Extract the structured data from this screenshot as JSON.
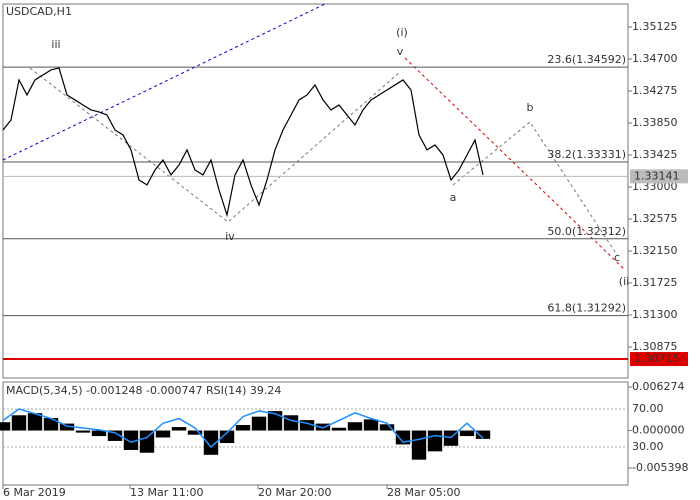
{
  "chart_data": [
    {
      "type": "line",
      "title": "USDCAD,H1",
      "color": "#000000",
      "x": [
        0,
        1,
        2,
        3,
        4,
        5,
        6,
        7,
        8,
        9,
        10,
        11,
        12,
        13,
        14,
        15,
        16,
        17,
        18,
        19,
        20,
        21,
        22,
        23,
        24,
        25,
        26,
        27,
        28,
        29,
        30,
        31,
        32,
        33,
        34,
        35,
        36,
        37,
        38,
        39,
        40,
        41,
        42,
        43,
        44,
        45,
        46,
        47,
        48,
        49,
        50,
        51,
        52,
        53,
        54,
        55,
        56,
        57,
        58,
        59,
        60
      ],
      "values": [
        1.33757,
        1.3389,
        1.34421,
        1.34222,
        1.34421,
        1.34488,
        1.34554,
        1.34581,
        1.34222,
        1.34156,
        1.34089,
        1.34023,
        1.33996,
        1.33956,
        1.33757,
        1.33691,
        1.33492,
        1.33093,
        1.33027,
        1.33226,
        1.33359,
        1.3316,
        1.33292,
        1.33492,
        1.33226,
        1.3316,
        1.33359,
        1.3296,
        1.32628,
        1.3316,
        1.33359,
        1.33027,
        1.32761,
        1.33093,
        1.33492,
        1.33757,
        1.33956,
        1.34156,
        1.34222,
        1.34355,
        1.34156,
        1.34023,
        1.34089,
        1.33956,
        1.33824,
        1.34023,
        1.34156,
        1.34222,
        1.34288,
        1.34355,
        1.34421,
        1.34288,
        1.33691,
        1.33492,
        1.33558,
        1.33425,
        1.33093,
        1.33226,
        1.33425,
        1.33624,
        1.3316
      ],
      "xlim": [
        0,
        78.125
      ],
      "xticks": [
        {
          "value": 0,
          "label": "6 Mar 2019"
        },
        {
          "value": 15.875,
          "label": "13 Mar 11:00"
        },
        {
          "value": 31.875,
          "label": "20 Mar 20:00"
        },
        {
          "value": 48,
          "label": "28 Mar 05:00"
        }
      ],
      "ylim": [
        1.30463,
        1.3543
      ],
      "yticks": [
        1.35125,
        {
          "value": 1.347,
          "label": "1.34700"
        },
        1.34275,
        {
          "value": 1.3385,
          "label": "1.33850"
        },
        1.33425,
        {
          "value": 1.33,
          "label": "1.33000"
        },
        1.32575,
        {
          "value": 1.3215,
          "label": "1.32150"
        },
        1.31725,
        {
          "value": 1.313,
          "label": "1.31300"
        },
        1.30875
      ],
      "levels": [
        {
          "value": 1.34592,
          "label": "23.6(1.34592)"
        },
        {
          "value": 1.33331,
          "label": "38.2(1.33331)"
        },
        {
          "value": 1.32312,
          "label": "50.0(1.32312)"
        },
        {
          "value": 1.31292,
          "label": "61.8(1.31292)"
        }
      ],
      "current_price": 1.33141,
      "red_level": 1.30715,
      "annotations": [
        {
          "text": "iii",
          "color": "#606060"
        },
        {
          "text": "iv",
          "color": "#606060"
        },
        {
          "text": "v",
          "color": "#606060"
        },
        {
          "text": "(i)",
          "color": "#dd0000"
        },
        {
          "text": "a",
          "color": "#606060"
        },
        {
          "text": "b",
          "color": "#606060"
        },
        {
          "text": "c",
          "color": "#606060"
        },
        {
          "text": "(ii",
          "color": "#dd0000"
        }
      ]
    },
    {
      "type": "bar",
      "title": "MACD(5,34,5) -0.001248 -0.000747 RSI(14) 39.24",
      "x": [
        0,
        2,
        4,
        6,
        8,
        10,
        12,
        14,
        16,
        18,
        20,
        22,
        24,
        26,
        28,
        30,
        32,
        34,
        36,
        38,
        40,
        42,
        44,
        46,
        48,
        50,
        52,
        54,
        56,
        58,
        60
      ],
      "series": [
        {
          "type": "bar",
          "color": "#000000",
          "values": [
            0.0012,
            0.0022,
            0.0025,
            0.0018,
            0.001,
            -0.0003,
            -0.0008,
            -0.0015,
            -0.0028,
            -0.0032,
            -0.001,
            0.0005,
            -0.0006,
            -0.0035,
            -0.0018,
            0.0008,
            0.002,
            0.0028,
            0.0022,
            0.0015,
            0.001,
            0.0004,
            0.0012,
            0.0016,
            0.0009,
            -0.002,
            -0.0042,
            -0.003,
            -0.0022,
            -0.0008,
            -0.0012
          ]
        },
        {
          "type": "line",
          "color": "#1e90ff",
          "axis": "y2",
          "values": [
            58,
            70,
            65,
            60,
            52,
            50,
            48,
            45,
            35,
            40,
            55,
            60,
            50,
            30,
            45,
            62,
            68,
            65,
            58,
            55,
            50,
            58,
            66,
            60,
            55,
            35,
            38,
            42,
            40,
            55,
            39.24
          ]
        }
      ],
      "ylim": [
        -0.00785,
        0.006994
      ],
      "yticks": [
        0.006274,
        {
          "value": 0,
          "label": "0.000000"
        },
        -0.005398
      ],
      "y2lim": [
        -10,
        98.4
      ],
      "y2ticks": [
        {
          "value": 70,
          "label": "70.00"
        },
        {
          "value": 30,
          "label": "30.00"
        }
      ]
    }
  ]
}
